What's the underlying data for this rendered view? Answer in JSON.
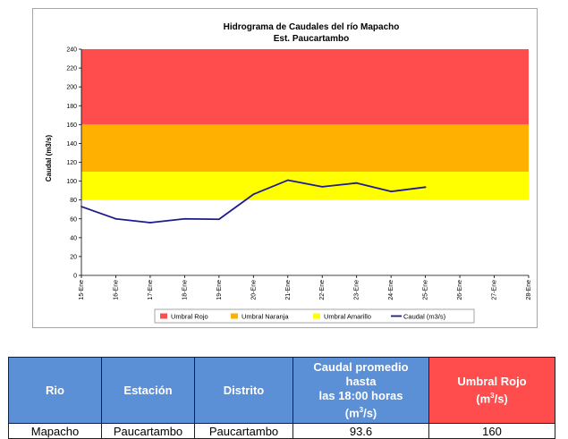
{
  "chart_data": {
    "type": "line",
    "title": "Hidrograma de Caudales del río Mapacho",
    "subtitle": "Est. Paucartambo",
    "ylabel": "Caudal (m3/s)",
    "xlabel": "",
    "ylim": [
      0,
      240
    ],
    "yticks": [
      0,
      20,
      40,
      60,
      80,
      100,
      120,
      140,
      160,
      180,
      200,
      220,
      240
    ],
    "categories": [
      "15-Ene",
      "16-Ene",
      "17-Ene",
      "18-Ene",
      "19-Ene",
      "20-Ene",
      "21-Ene",
      "22-Ene",
      "23-Ene",
      "24-Ene",
      "25-Ene",
      "26-Ene",
      "27-Ene",
      "28-Ene"
    ],
    "grid": false,
    "legend_position": "bottom",
    "bands": [
      {
        "name": "Umbral Rojo",
        "from": 160,
        "to": 240,
        "color": "#ff4d4d"
      },
      {
        "name": "Umbral Naranja",
        "from": 110,
        "to": 160,
        "color": "#ffb000"
      },
      {
        "name": "Umbral Amarillo",
        "from": 80,
        "to": 110,
        "color": "#ffff00"
      }
    ],
    "series": [
      {
        "name": "Caudal (m3/s)",
        "color": "#1c1c8c",
        "values": [
          73,
          60,
          56,
          60,
          59.5,
          86,
          101,
          94,
          98,
          89,
          93.6,
          null,
          null,
          null
        ]
      }
    ]
  },
  "table": {
    "headers": {
      "rio": "Rio",
      "estacion": "Estación",
      "distrito": "Distrito",
      "caudal_line1": "Caudal promedio hasta",
      "caudal_line2": "las 18:00 horas",
      "caudal_unit_a": "(m",
      "caudal_unit_sup": "3",
      "caudal_unit_b": "/s)",
      "umbral_line1": "Umbral Rojo",
      "umbral_unit_a": "(m",
      "umbral_unit_sup": "3",
      "umbral_unit_b": "/s)"
    },
    "row": {
      "rio": "Mapacho",
      "estacion": "Paucartambo",
      "distrito": "Paucartambo",
      "caudal": "93.6",
      "umbral": "160"
    }
  }
}
